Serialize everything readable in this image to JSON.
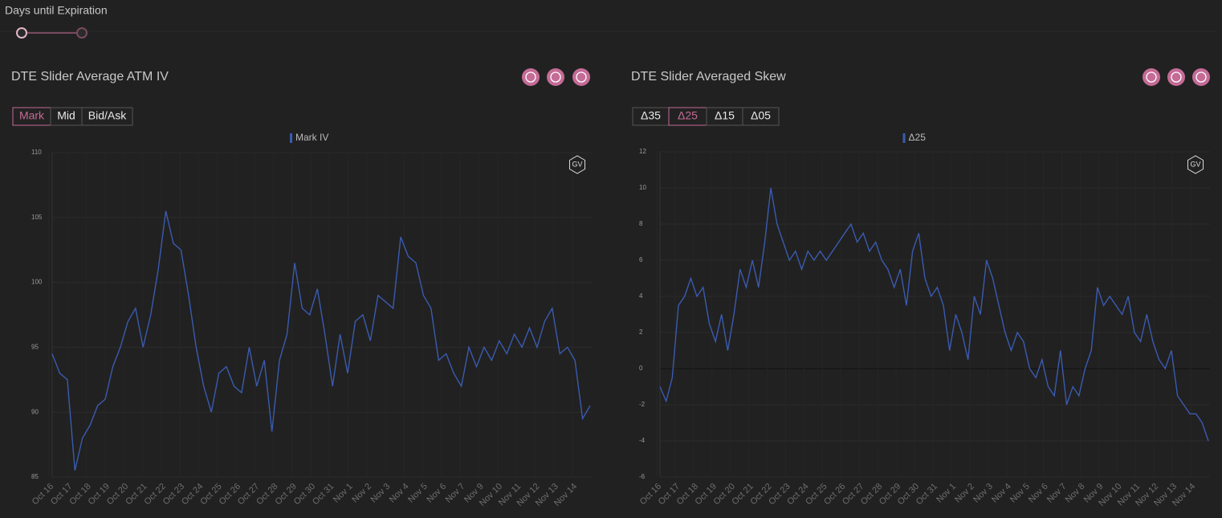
{
  "header": {
    "slider_label": "Days until Expiration"
  },
  "chart_data": [
    {
      "type": "line",
      "title": "DTE Slider Average ATM IV",
      "buttons": [
        "Mark",
        "Mid",
        "Bid/Ask"
      ],
      "active_button": 0,
      "watermark": "GV",
      "series": [
        {
          "name": "Mark IV",
          "color": "#3a5bb0",
          "values": [
            94.5,
            93,
            92.5,
            85.5,
            88,
            89,
            90.5,
            91,
            93.5,
            95,
            97,
            98,
            95,
            97.5,
            101,
            105.5,
            103,
            102.5,
            99,
            95,
            92,
            90,
            93,
            93.5,
            92,
            91.5,
            95,
            92,
            94,
            88.5,
            94,
            96,
            101.5,
            98,
            97.5,
            99.5,
            96,
            92,
            96,
            93,
            97,
            97.5,
            95.5,
            99,
            98.5,
            98,
            103.5,
            102,
            101.5,
            99,
            98,
            94,
            94.5,
            93,
            92,
            95,
            93.5,
            95,
            94,
            95.5,
            94.5,
            96,
            95,
            96.5,
            95,
            97,
            98,
            94.5,
            95,
            94,
            89.5,
            90.5
          ]
        }
      ],
      "x_labels": [
        "Oct 16",
        "Oct 17",
        "Oct 18",
        "Oct 19",
        "Oct 20",
        "Oct 21",
        "Oct 22",
        "Oct 23",
        "Oct 24",
        "Oct 25",
        "Oct 26",
        "Oct 27",
        "Oct 28",
        "Oct 29",
        "Oct 30",
        "Oct 31",
        "Nov 1",
        "Nov 2",
        "Nov 3",
        "Nov 4",
        "Nov 5",
        "Nov 6",
        "Nov 7",
        "Nov 9",
        "Nov 10",
        "Nov 11",
        "Nov 12",
        "Nov 13",
        "Nov 14"
      ],
      "ylim": [
        85,
        110
      ],
      "yticks": [
        85,
        90,
        95,
        100,
        105,
        110
      ],
      "grid": true
    },
    {
      "type": "line",
      "title": "DTE Slider Averaged Skew",
      "buttons": [
        "Δ35",
        "Δ25",
        "Δ15",
        "Δ05"
      ],
      "active_button": 1,
      "watermark": "GV",
      "series": [
        {
          "name": "Δ25",
          "color": "#3a5bb0",
          "values": [
            -1,
            -1.8,
            -0.5,
            3.5,
            4,
            5,
            4,
            4.5,
            2.5,
            1.5,
            3,
            1,
            3,
            5.5,
            4.5,
            6,
            4.5,
            7,
            10,
            8,
            7,
            6,
            6.5,
            5.5,
            6.5,
            6,
            6.5,
            6,
            6.5,
            7,
            7.5,
            8,
            7,
            7.5,
            6.5,
            7,
            6,
            5.5,
            4.5,
            5.5,
            3.5,
            6.5,
            7.5,
            5,
            4,
            4.5,
            3.5,
            1,
            3,
            2,
            0.5,
            4,
            3,
            6,
            5,
            3.5,
            2,
            1,
            2,
            1.5,
            0,
            -0.5,
            0.5,
            -1,
            -1.5,
            1,
            -2,
            -1,
            -1.5,
            0,
            1,
            4.5,
            3.5,
            4,
            3.5,
            3,
            4,
            2,
            1.5,
            3,
            1.5,
            0.5,
            0,
            1,
            -1.5,
            -2,
            -2.5,
            -2.5,
            -3,
            -4
          ]
        }
      ],
      "x_labels": [
        "Oct 16",
        "Oct 17",
        "Oct 18",
        "Oct 19",
        "Oct 20",
        "Oct 21",
        "Oct 22",
        "Oct 23",
        "Oct 24",
        "Oct 25",
        "Oct 26",
        "Oct 27",
        "Oct 28",
        "Oct 29",
        "Oct 30",
        "Oct 31",
        "Nov 1",
        "Nov 2",
        "Nov 3",
        "Nov 4",
        "Nov 5",
        "Nov 6",
        "Nov 7",
        "Nov 8",
        "Nov 9",
        "Nov 10",
        "Nov 11",
        "Nov 12",
        "Nov 13",
        "Nov 14"
      ],
      "ylim": [
        -6,
        12
      ],
      "yticks": [
        -6,
        -4,
        -2,
        0,
        2,
        4,
        6,
        8,
        10,
        12
      ],
      "grid": true
    }
  ]
}
